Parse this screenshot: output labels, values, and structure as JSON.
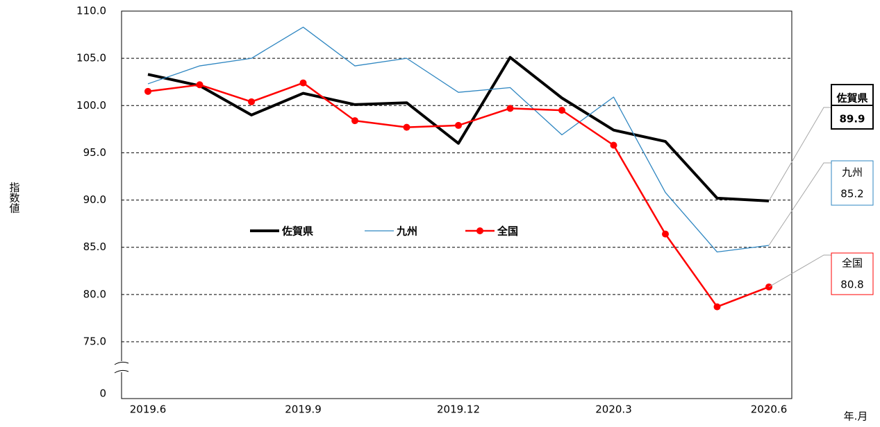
{
  "chart_data": {
    "type": "line",
    "y_label": "指数値",
    "x_label": "年.月",
    "categories": [
      "2019.6",
      null,
      null,
      "2019.9",
      null,
      null,
      "2019.12",
      null,
      null,
      "2020.3",
      null,
      null,
      "2020.6"
    ],
    "series": [
      {
        "name": "佐賀県",
        "color": "#000000",
        "values": [
          103.3,
          102.1,
          99.0,
          101.3,
          100.1,
          100.3,
          96.0,
          105.1,
          100.8,
          97.4,
          96.2,
          90.2,
          89.9
        ]
      },
      {
        "name": "九州",
        "color": "#2e86c1",
        "values": [
          102.3,
          104.2,
          105.0,
          108.3,
          104.2,
          105.0,
          101.4,
          101.9,
          96.9,
          100.9,
          90.8,
          84.5,
          85.2
        ]
      },
      {
        "name": "全国",
        "color": "#ff0000",
        "marker": "circle",
        "values": [
          101.5,
          102.2,
          100.4,
          102.4,
          98.4,
          97.7,
          97.9,
          99.7,
          99.5,
          95.8,
          86.4,
          78.7,
          80.8
        ]
      }
    ],
    "ylim": [
      0,
      110
    ],
    "axis_break": [
      0,
      75
    ],
    "yticks": [
      0,
      {
        "value": 75,
        "label": "75.0"
      },
      {
        "value": 80,
        "label": "80.0"
      },
      {
        "value": 85,
        "label": "85.0"
      },
      {
        "value": 90,
        "label": "90.0"
      },
      {
        "value": 95,
        "label": "95.0"
      },
      {
        "value": 100,
        "label": "100.0"
      },
      {
        "value": 105,
        "label": "105.0"
      },
      {
        "value": 110,
        "label": "110.0"
      }
    ],
    "grid": true,
    "grid_style": "dashed",
    "legend": "center"
  }
}
